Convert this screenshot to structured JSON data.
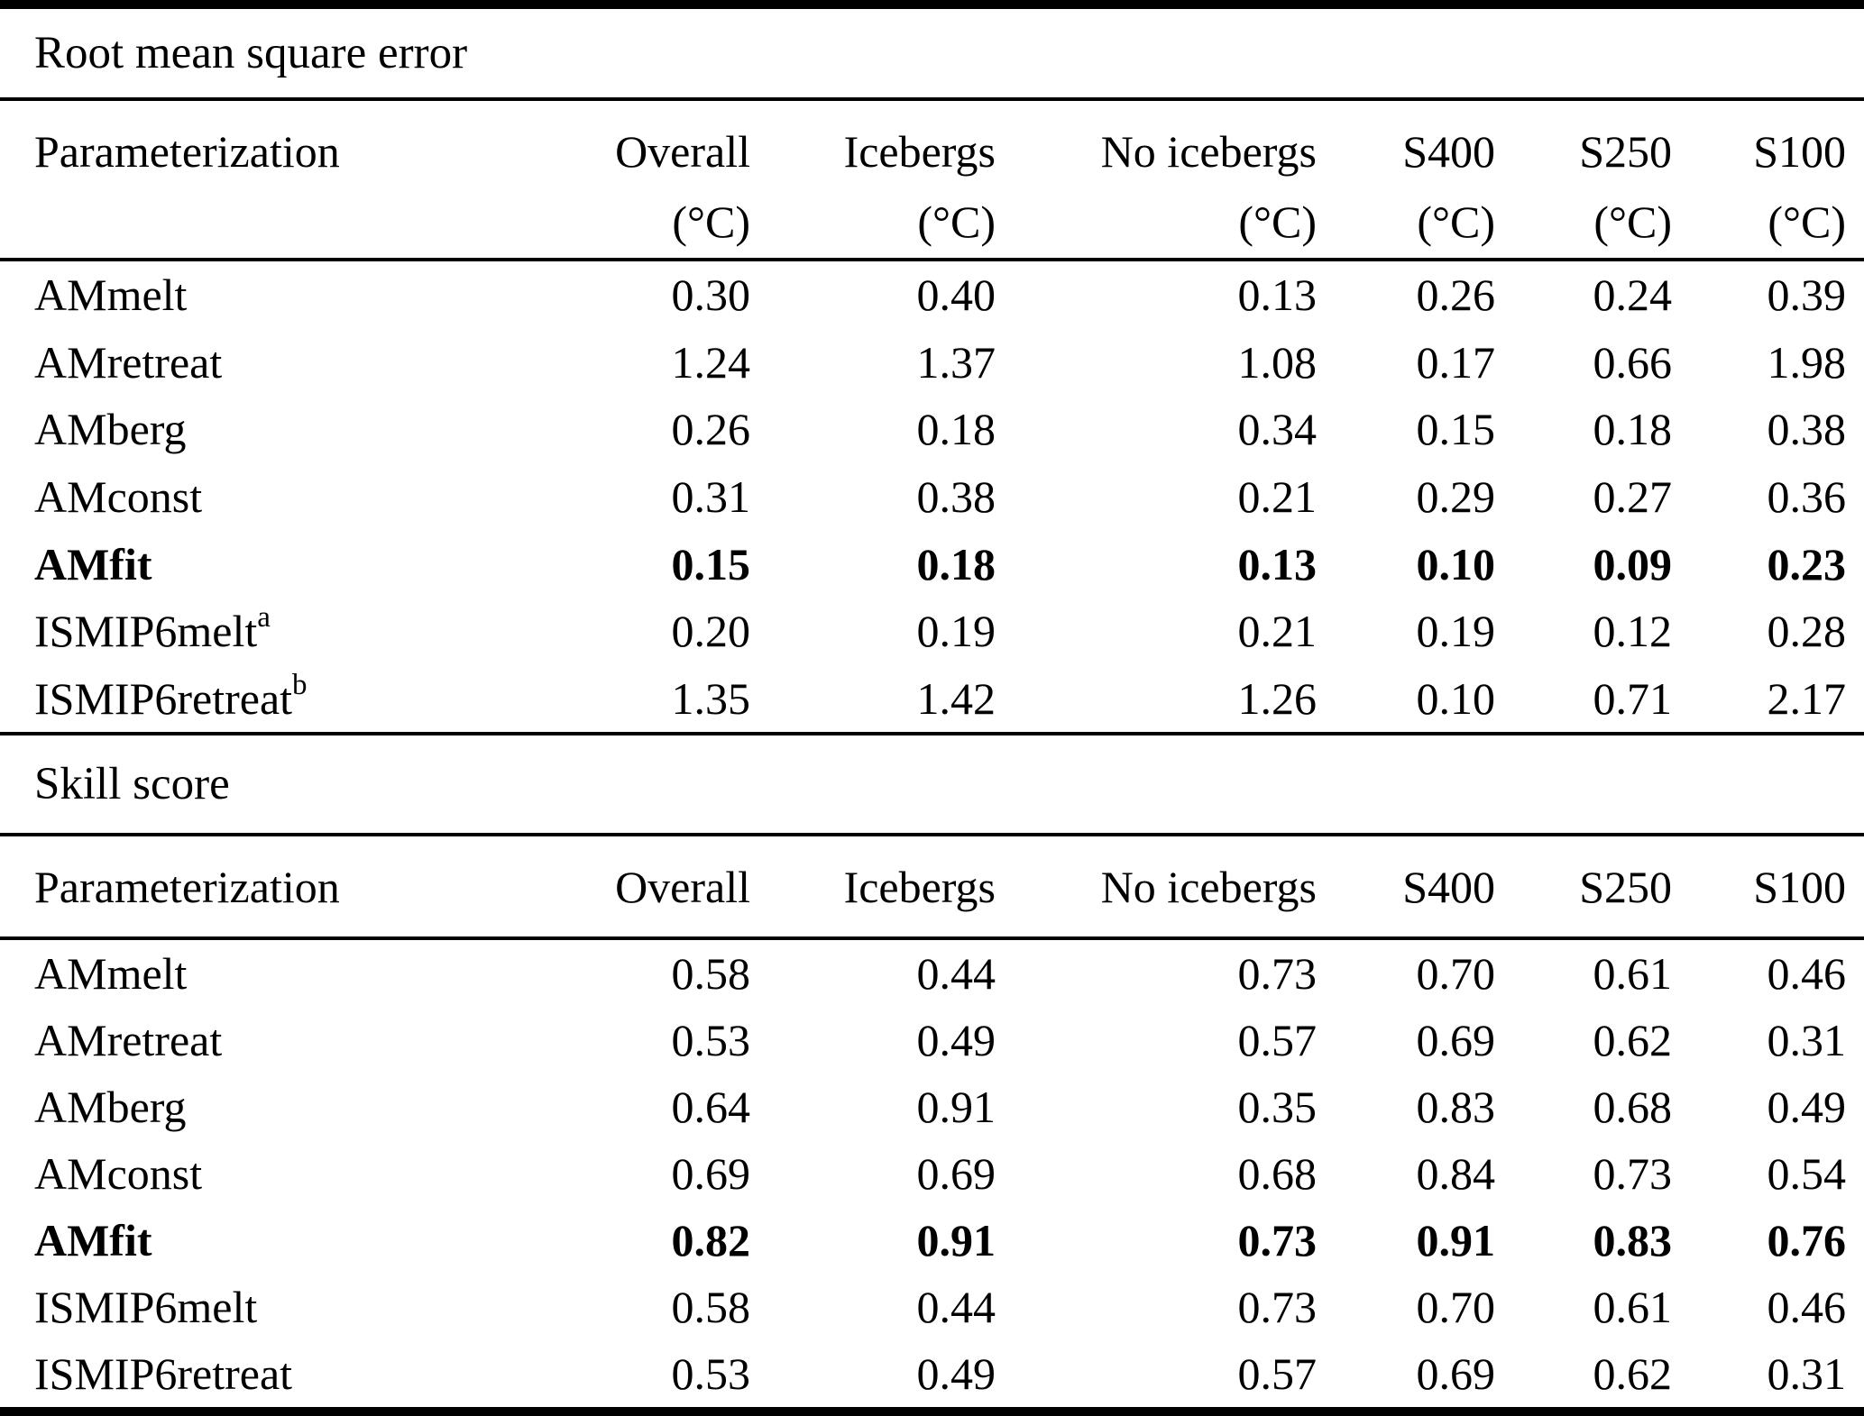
{
  "chart_data": [
    {
      "type": "table",
      "title": "Root mean square error",
      "columns": [
        "Parameterization",
        "Overall",
        "Icebergs",
        "No icebergs",
        "S400",
        "S250",
        "S100"
      ],
      "units": [
        "",
        "(°C)",
        "(°C)",
        "(°C)",
        "(°C)",
        "(°C)",
        "(°C)"
      ],
      "rows": [
        {
          "label": "AMmelt",
          "sup": "",
          "bold": false,
          "values": [
            "0.30",
            "0.40",
            "0.13",
            "0.26",
            "0.24",
            "0.39"
          ]
        },
        {
          "label": "AMretreat",
          "sup": "",
          "bold": false,
          "values": [
            "1.24",
            "1.37",
            "1.08",
            "0.17",
            "0.66",
            "1.98"
          ]
        },
        {
          "label": "AMberg",
          "sup": "",
          "bold": false,
          "values": [
            "0.26",
            "0.18",
            "0.34",
            "0.15",
            "0.18",
            "0.38"
          ]
        },
        {
          "label": "AMconst",
          "sup": "",
          "bold": false,
          "values": [
            "0.31",
            "0.38",
            "0.21",
            "0.29",
            "0.27",
            "0.36"
          ]
        },
        {
          "label": "AMfit",
          "sup": "",
          "bold": true,
          "values": [
            "0.15",
            "0.18",
            "0.13",
            "0.10",
            "0.09",
            "0.23"
          ]
        },
        {
          "label": "ISMIP6melt",
          "sup": "a",
          "bold": false,
          "values": [
            "0.20",
            "0.19",
            "0.21",
            "0.19",
            "0.12",
            "0.28"
          ]
        },
        {
          "label": "ISMIP6retreat",
          "sup": "b",
          "bold": false,
          "values": [
            "1.35",
            "1.42",
            "1.26",
            "0.10",
            "0.71",
            "2.17"
          ]
        }
      ]
    },
    {
      "type": "table",
      "title": "Skill score",
      "columns": [
        "Parameterization",
        "Overall",
        "Icebergs",
        "No icebergs",
        "S400",
        "S250",
        "S100"
      ],
      "units": [
        "",
        "",
        "",
        "",
        "",
        "",
        ""
      ],
      "rows": [
        {
          "label": "AMmelt",
          "sup": "",
          "bold": false,
          "values": [
            "0.58",
            "0.44",
            "0.73",
            "0.70",
            "0.61",
            "0.46"
          ]
        },
        {
          "label": "AMretreat",
          "sup": "",
          "bold": false,
          "values": [
            "0.53",
            "0.49",
            "0.57",
            "0.69",
            "0.62",
            "0.31"
          ]
        },
        {
          "label": "AMberg",
          "sup": "",
          "bold": false,
          "values": [
            "0.64",
            "0.91",
            "0.35",
            "0.83",
            "0.68",
            "0.49"
          ]
        },
        {
          "label": "AMconst",
          "sup": "",
          "bold": false,
          "values": [
            "0.69",
            "0.69",
            "0.68",
            "0.84",
            "0.73",
            "0.54"
          ]
        },
        {
          "label": "AMfit",
          "sup": "",
          "bold": true,
          "values": [
            "0.82",
            "0.91",
            "0.73",
            "0.91",
            "0.83",
            "0.76"
          ]
        },
        {
          "label": "ISMIP6melt",
          "sup": "",
          "bold": false,
          "values": [
            "0.58",
            "0.44",
            "0.73",
            "0.70",
            "0.61",
            "0.46"
          ]
        },
        {
          "label": "ISMIP6retreat",
          "sup": "",
          "bold": false,
          "values": [
            "0.53",
            "0.49",
            "0.57",
            "0.69",
            "0.62",
            "0.31"
          ]
        }
      ]
    }
  ],
  "colors": {
    "text": "#000000",
    "background": "#ffffff",
    "rule": "#000000"
  }
}
